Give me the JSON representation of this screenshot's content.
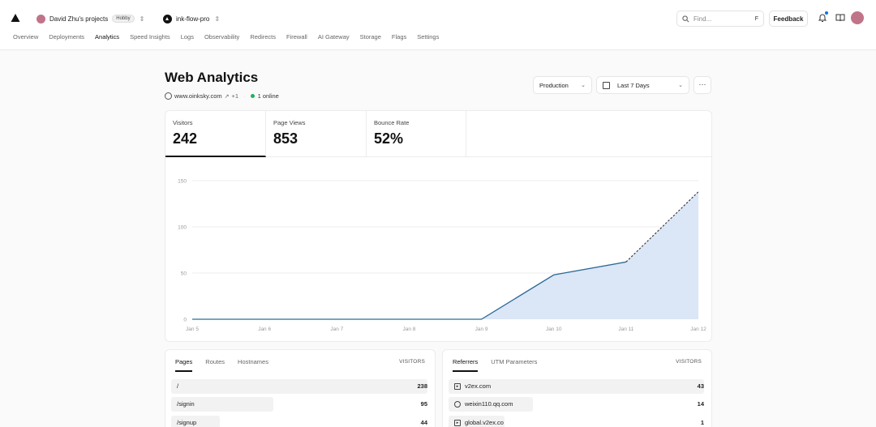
{
  "header": {
    "team": "David Zhu's projects",
    "plan_badge": "Hobby",
    "project": "ink-flow-pro",
    "search_placeholder": "Find...",
    "search_shortcut": "F",
    "feedback_label": "Feedback"
  },
  "nav": {
    "tabs": [
      "Overview",
      "Deployments",
      "Analytics",
      "Speed Insights",
      "Logs",
      "Observability",
      "Redirects",
      "Firewall",
      "AI Gateway",
      "Storage",
      "Flags",
      "Settings"
    ],
    "active": "Analytics"
  },
  "page": {
    "title": "Web Analytics",
    "domain": "www.oinksky.com",
    "domain_extra": "+1",
    "online": "1 online",
    "environment": "Production",
    "range": "Last 7 Days"
  },
  "stats": [
    {
      "label": "Visitors",
      "value": "242"
    },
    {
      "label": "Page Views",
      "value": "853"
    },
    {
      "label": "Bounce Rate",
      "value": "52%"
    }
  ],
  "chart_data": {
    "type": "area",
    "x": [
      "Jan 5",
      "Jan 6",
      "Jan 7",
      "Jan 8",
      "Jan 9",
      "Jan 10",
      "Jan 11",
      "Jan 12"
    ],
    "values": [
      0,
      0,
      0,
      0,
      0,
      48,
      62,
      138
    ],
    "projected_from_index": 6,
    "ylim": [
      0,
      150
    ],
    "yticks": [
      0,
      50,
      100,
      150
    ],
    "grid": true,
    "color": "#2c6a95",
    "fill": "#dbe6f7"
  },
  "pages_panel": {
    "tabs": [
      "Pages",
      "Routes",
      "Hostnames"
    ],
    "column": "VISITORS",
    "rows": [
      {
        "label": "/",
        "value": 238
      },
      {
        "label": "/signin",
        "value": 95
      },
      {
        "label": "/signup",
        "value": 44
      }
    ]
  },
  "referrers_panel": {
    "tabs": [
      "Referrers",
      "UTM Parameters"
    ],
    "column": "VISITORS",
    "rows": [
      {
        "label": "v2ex.com",
        "value": 43,
        "icon": "v2ex-icon"
      },
      {
        "label": "weixin110.qq.com",
        "value": 14,
        "icon": "globe-icon"
      },
      {
        "label": "global.v2ex.co",
        "value": 1,
        "icon": "v2ex-icon"
      }
    ]
  }
}
